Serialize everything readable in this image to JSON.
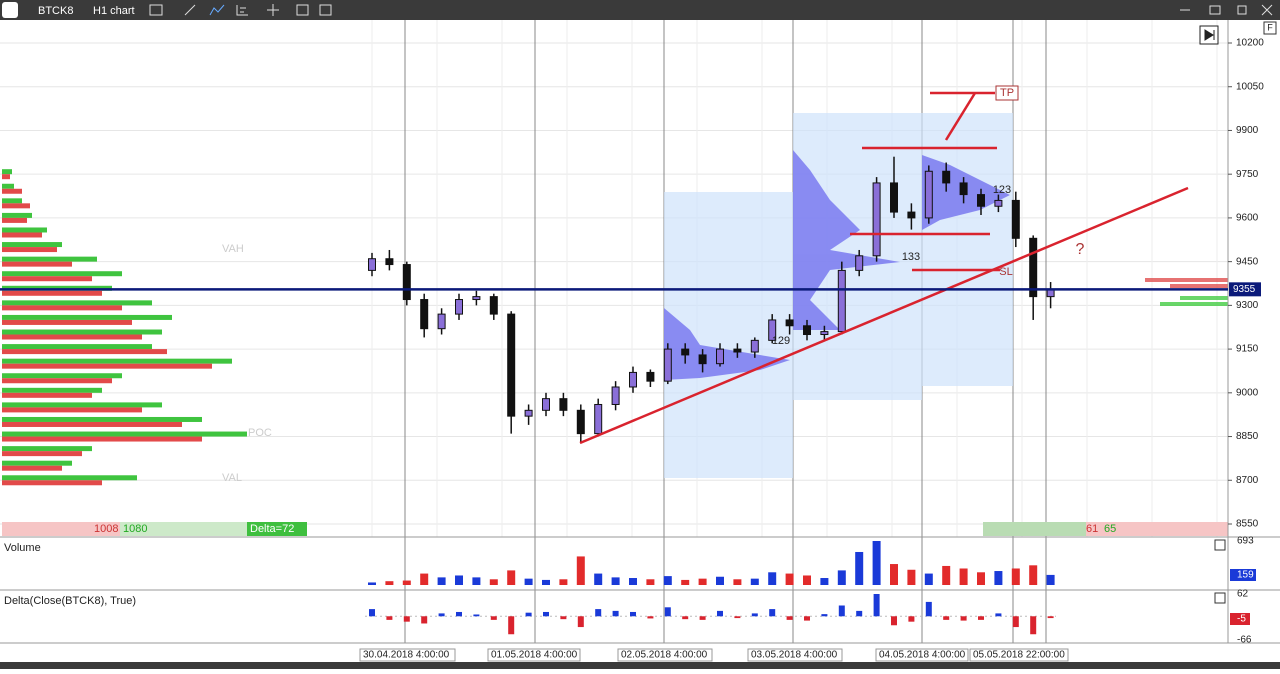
{
  "toolbar": {
    "symbol": "BTCK8",
    "timeframe": "H1 chart"
  },
  "price_axis": {
    "ylim": [
      8550,
      10200
    ],
    "yticks": [
      10200,
      10050,
      9900,
      9750,
      9600,
      9450,
      9300,
      9150,
      9000,
      8850,
      8700,
      8550
    ],
    "current": 9355,
    "current_label": "9355"
  },
  "annotations": {
    "tp": "TP",
    "sl": "SL",
    "q": "?",
    "n133": "133",
    "n129": "129",
    "n123": "123",
    "vah": "VAH",
    "poc": "POC",
    "val": "VAL",
    "f": "F"
  },
  "footer_left": {
    "a": "1008",
    "b": "1080",
    "delta": "Delta=72"
  },
  "footer_right": {
    "a": "61",
    "b": "65"
  },
  "candles": [
    [
      9420,
      9480,
      9400,
      9460
    ],
    [
      9460,
      9490,
      9420,
      9440
    ],
    [
      9440,
      9450,
      9300,
      9320
    ],
    [
      9320,
      9340,
      9190,
      9220
    ],
    [
      9220,
      9290,
      9200,
      9270
    ],
    [
      9270,
      9340,
      9250,
      9320
    ],
    [
      9320,
      9350,
      9300,
      9330
    ],
    [
      9330,
      9340,
      9250,
      9270
    ],
    [
      9270,
      9280,
      8860,
      8920
    ],
    [
      8920,
      8960,
      8890,
      8940
    ],
    [
      8940,
      9000,
      8920,
      8980
    ],
    [
      8980,
      9000,
      8920,
      8940
    ],
    [
      8940,
      8960,
      8830,
      8860
    ],
    [
      8860,
      8980,
      8850,
      8960
    ],
    [
      8960,
      9040,
      8940,
      9020
    ],
    [
      9020,
      9090,
      9000,
      9070
    ],
    [
      9070,
      9080,
      9020,
      9040
    ],
    [
      9040,
      9170,
      9030,
      9150
    ],
    [
      9150,
      9170,
      9100,
      9130
    ],
    [
      9130,
      9150,
      9070,
      9100
    ],
    [
      9100,
      9170,
      9090,
      9150
    ],
    [
      9150,
      9170,
      9120,
      9140
    ],
    [
      9140,
      9190,
      9120,
      9180
    ],
    [
      9180,
      9270,
      9170,
      9250
    ],
    [
      9250,
      9270,
      9200,
      9230
    ],
    [
      9230,
      9250,
      9180,
      9200
    ],
    [
      9200,
      9230,
      9180,
      9210
    ],
    [
      9210,
      9450,
      9200,
      9420
    ],
    [
      9420,
      9490,
      9400,
      9470
    ],
    [
      9470,
      9740,
      9450,
      9720
    ],
    [
      9720,
      9810,
      9600,
      9620
    ],
    [
      9620,
      9650,
      9560,
      9600
    ],
    [
      9600,
      9780,
      9580,
      9760
    ],
    [
      9760,
      9790,
      9690,
      9720
    ],
    [
      9720,
      9740,
      9650,
      9680
    ],
    [
      9680,
      9700,
      9610,
      9640
    ],
    [
      9640,
      9680,
      9620,
      9660
    ],
    [
      9660,
      9690,
      9500,
      9530
    ],
    [
      9530,
      9540,
      9250,
      9330
    ],
    [
      9330,
      9380,
      9290,
      9355
    ]
  ],
  "volume": {
    "title": "Volume",
    "max_label": "693",
    "max": 693,
    "last_label": "159",
    "values": [
      40,
      60,
      70,
      180,
      120,
      150,
      120,
      90,
      230,
      100,
      80,
      90,
      450,
      180,
      120,
      110,
      90,
      140,
      80,
      100,
      130,
      90,
      100,
      200,
      180,
      150,
      110,
      230,
      520,
      693,
      330,
      240,
      180,
      300,
      260,
      200,
      220,
      260,
      310,
      159
    ]
  },
  "delta": {
    "title": "Delta(Close(BTCK8), True)",
    "ylim": [
      -66,
      62
    ],
    "top_label": "62",
    "bottom_label": "-66",
    "last_label": "-5",
    "values": [
      20,
      -10,
      -15,
      -20,
      8,
      12,
      5,
      -10,
      -50,
      10,
      12,
      -8,
      -30,
      20,
      15,
      12,
      -6,
      25,
      -8,
      -10,
      15,
      -5,
      8,
      20,
      -10,
      -12,
      6,
      30,
      15,
      62,
      -25,
      -15,
      40,
      -10,
      -12,
      -10,
      8,
      -30,
      -50,
      -5
    ]
  },
  "profile": {
    "prices": [
      9750,
      9700,
      9650,
      9600,
      9550,
      9500,
      9450,
      9400,
      9350,
      9300,
      9250,
      9200,
      9150,
      9100,
      9050,
      9000,
      8950,
      8900,
      8850,
      8800,
      8750,
      8700
    ],
    "buy": [
      10,
      12,
      20,
      30,
      45,
      60,
      95,
      120,
      110,
      150,
      170,
      160,
      150,
      230,
      120,
      100,
      160,
      200,
      245,
      90,
      70,
      135
    ],
    "sell": [
      8,
      20,
      28,
      25,
      40,
      55,
      70,
      90,
      100,
      120,
      130,
      140,
      165,
      210,
      110,
      90,
      140,
      180,
      200,
      80,
      60,
      100
    ]
  },
  "time_axis": [
    "30.04.2018 4:00:00",
    "01.05.2018 4:00:00",
    "02.05.2018 4:00:00",
    "03.05.2018 4:00:00",
    "04.05.2018 4:00:00",
    "05.05.2018 22:00:00"
  ]
}
